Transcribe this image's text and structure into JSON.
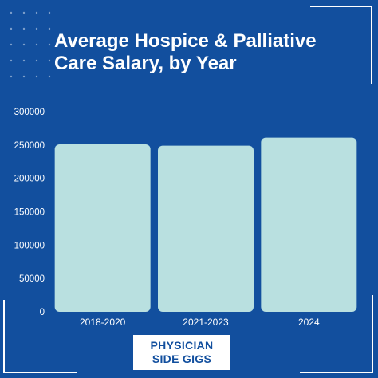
{
  "title_line1": "Average Hospice & Palliative",
  "title_line2": "Care Salary, by Year",
  "brand": {
    "line1": "PHYSICIAN",
    "line2": "SIDE GIGS"
  },
  "colors": {
    "background": "#124f9e",
    "bar": "#b9e0e0",
    "text": "#ffffff"
  },
  "chart_data": {
    "type": "bar",
    "title": "Average Hospice & Palliative Care Salary, by Year",
    "categories": [
      "2018-2020",
      "2021-2023",
      "2024"
    ],
    "values": [
      251000,
      249000,
      261000
    ],
    "yticks": [
      0,
      50000,
      100000,
      150000,
      200000,
      250000,
      300000
    ],
    "ylim": [
      0,
      300000
    ],
    "xlabel": "",
    "ylabel": "",
    "grid": false,
    "legend": "none"
  }
}
